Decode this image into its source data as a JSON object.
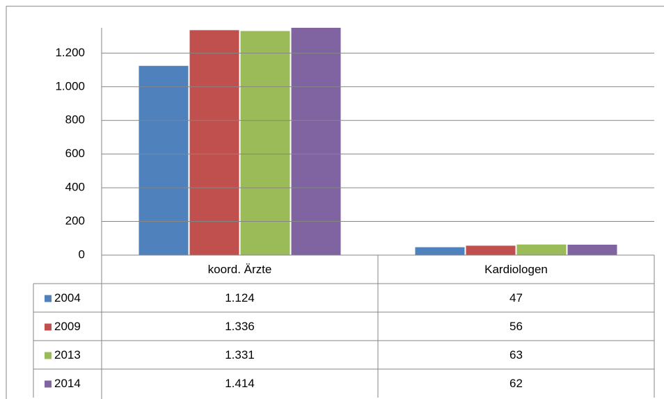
{
  "chart_data": {
    "type": "bar",
    "categories": [
      "koord. Ärzte",
      "Kardiologen"
    ],
    "series": [
      {
        "name": "2004",
        "color": "#4f81bd",
        "values": [
          1124,
          47
        ],
        "value_labels": [
          "1.124",
          "47"
        ]
      },
      {
        "name": "2009",
        "color": "#c0504d",
        "values": [
          1336,
          56
        ],
        "value_labels": [
          "1.336",
          "56"
        ]
      },
      {
        "name": "2013",
        "color": "#9bbb59",
        "values": [
          1331,
          63
        ],
        "value_labels": [
          "1.331",
          "63"
        ]
      },
      {
        "name": "2014",
        "color": "#8064a2",
        "values": [
          1414,
          62
        ],
        "value_labels": [
          "1.414",
          "62"
        ]
      }
    ],
    "ylim": [
      0,
      1350
    ],
    "yticks": [
      0,
      200,
      400,
      600,
      800,
      {
        "value": 1000,
        "label": "1.000"
      },
      {
        "value": 1200,
        "label": "1.200"
      }
    ],
    "grid": true
  }
}
